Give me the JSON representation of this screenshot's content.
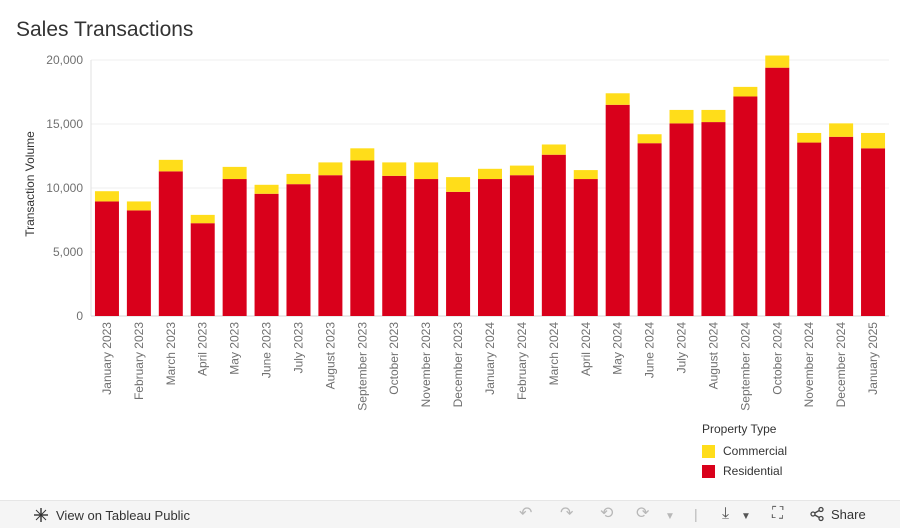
{
  "title": "Sales Transactions",
  "colors": {
    "residential": "#d9001b",
    "commercial": "#ffdd1a"
  },
  "legend": {
    "title": "Property Type",
    "items": [
      {
        "label": "Commercial",
        "color": "#ffdd1a"
      },
      {
        "label": "Residential",
        "color": "#d9001b"
      }
    ]
  },
  "toolbar": {
    "view_label": "View on Tableau Public",
    "share_label": "Share",
    "icons": [
      "undo-icon",
      "redo-icon",
      "revert-icon",
      "refresh-icon",
      "pause-icon",
      "download-icon",
      "fullscreen-icon",
      "share-icon"
    ]
  },
  "chart_data": {
    "type": "bar",
    "stacked": true,
    "title": "Sales Transactions",
    "xlabel": "",
    "ylabel": "Transaction Volume",
    "ylim": [
      0,
      20000
    ],
    "yticks": [
      0,
      5000,
      10000,
      15000,
      20000
    ],
    "ytick_labels": [
      "0",
      "5,000",
      "10,000",
      "15,000",
      "20,000"
    ],
    "grid": true,
    "legend_position": "bottom-right",
    "categories": [
      "January 2023",
      "February 2023",
      "March 2023",
      "April 2023",
      "May 2023",
      "June 2023",
      "July 2023",
      "August 2023",
      "September 2023",
      "October 2023",
      "November 2023",
      "December 2023",
      "January 2024",
      "February 2024",
      "March 2024",
      "April 2024",
      "May 2024",
      "June 2024",
      "July 2024",
      "August 2024",
      "September 2024",
      "October 2024",
      "November 2024",
      "December 2024",
      "January 2025"
    ],
    "series": [
      {
        "name": "Residential",
        "color": "#d9001b",
        "values": [
          8950,
          8250,
          11300,
          7250,
          10700,
          9550,
          10300,
          11000,
          12150,
          10950,
          10700,
          9700,
          10700,
          11000,
          12600,
          10700,
          16500,
          13500,
          15050,
          15150,
          17150,
          19400,
          13550,
          14000,
          13100
        ]
      },
      {
        "name": "Commercial",
        "color": "#ffdd1a",
        "values": [
          800,
          700,
          900,
          650,
          950,
          700,
          800,
          1000,
          950,
          1050,
          1300,
          1150,
          800,
          750,
          800,
          700,
          900,
          700,
          1050,
          950,
          750,
          950,
          750,
          1050,
          1200
        ]
      }
    ]
  }
}
